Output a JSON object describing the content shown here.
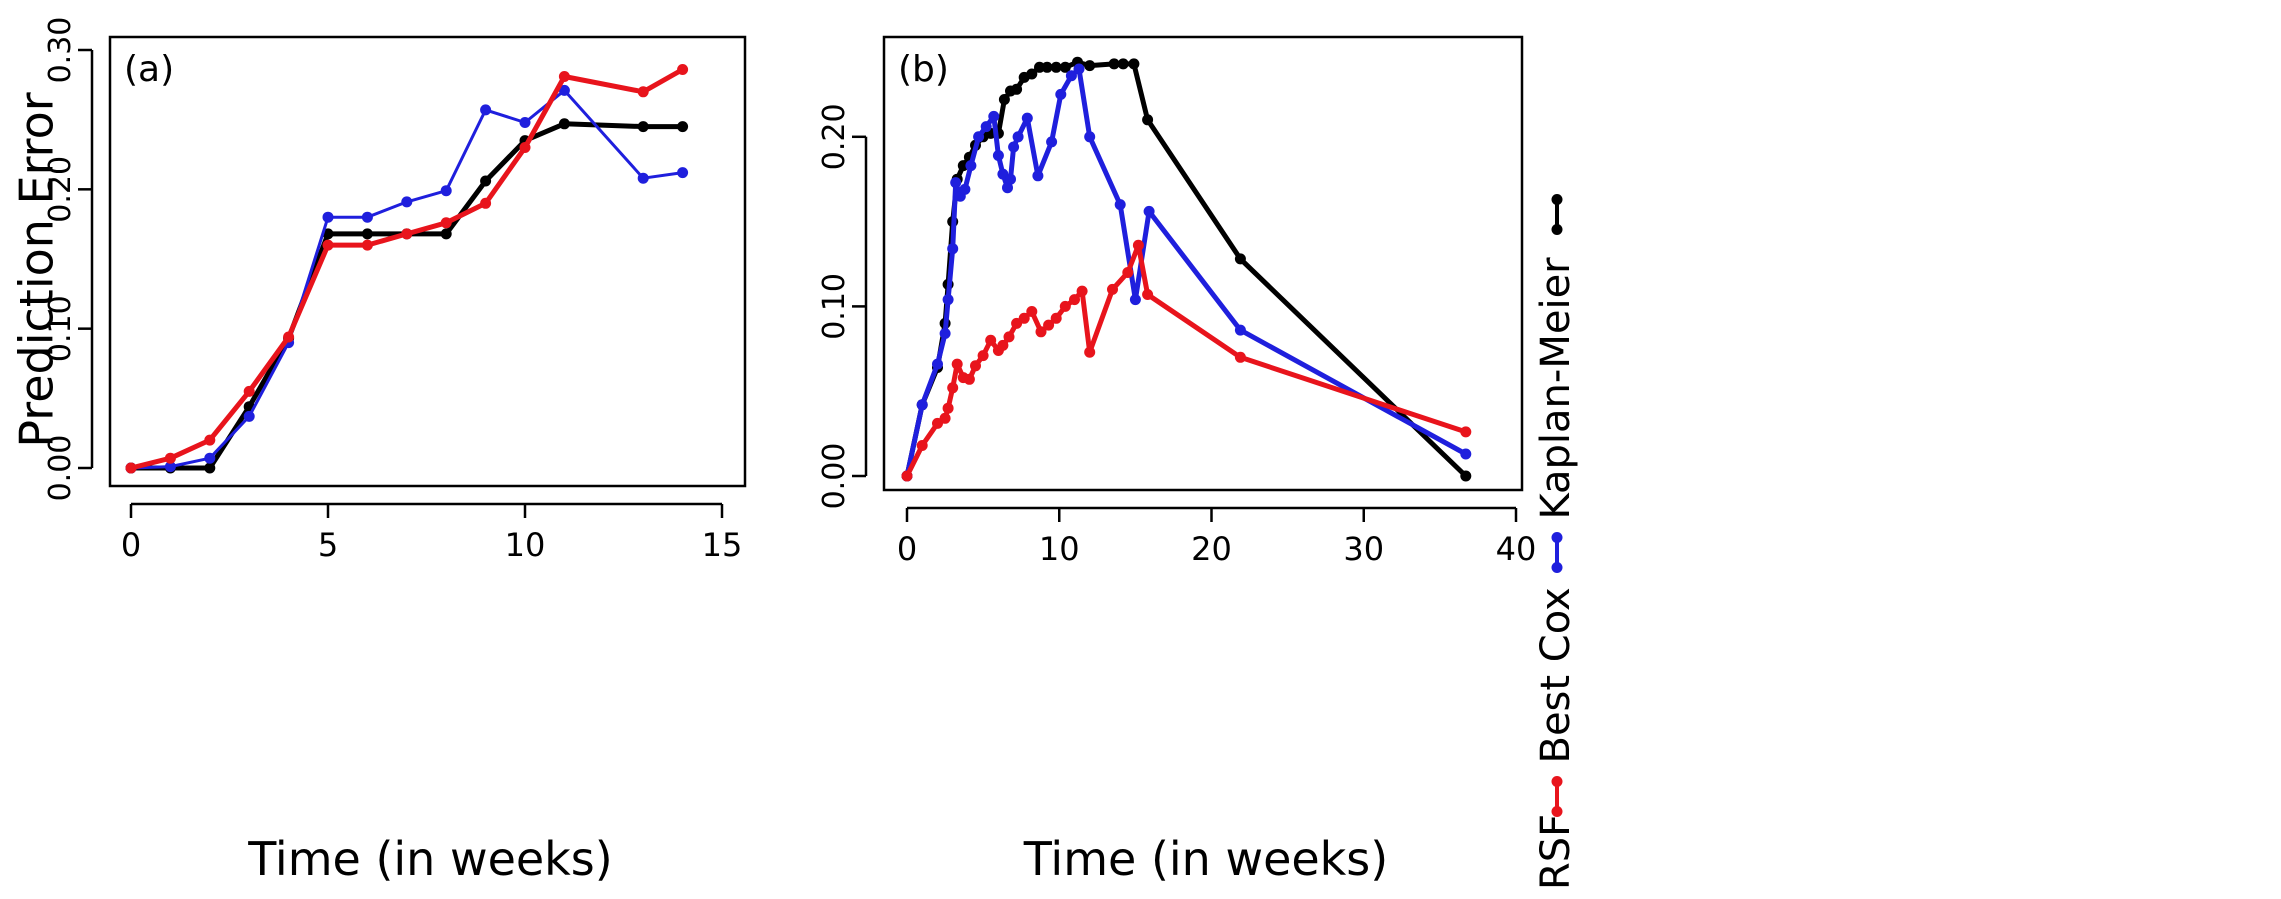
{
  "legend": {
    "items": [
      {
        "label": "RSF",
        "color": "#e8141c"
      },
      {
        "label": "Best Cox",
        "color": "#1f1fdd"
      },
      {
        "label": "Kaplan-Meier",
        "color": "#000000"
      }
    ],
    "placement": "right, vertical"
  },
  "chart_data": [
    {
      "type": "line",
      "title": "(a)",
      "xlabel": "Time (in weeks)",
      "ylabel": "Prediction Error",
      "xlim": [
        0,
        15
      ],
      "ylim": [
        0,
        0.3
      ],
      "xticks": [
        0,
        5,
        10,
        15
      ],
      "xtick_labels": [
        "0",
        "5",
        "10",
        "15"
      ],
      "yticks": [
        0,
        0.1,
        0.2,
        0.3
      ],
      "ytick_labels": [
        "0.00",
        "0.10",
        "0.20",
        "0.30"
      ],
      "grid": false,
      "series": [
        {
          "name": "Kaplan-Meier",
          "color": "#000000",
          "x": [
            0,
            1,
            2,
            3,
            4,
            5,
            6,
            7,
            8,
            9,
            10,
            11,
            13,
            14
          ],
          "y": [
            0.0,
            0.0,
            0.0,
            0.044,
            0.093,
            0.168,
            0.168,
            0.168,
            0.168,
            0.206,
            0.235,
            0.247,
            0.245,
            0.245
          ]
        },
        {
          "name": "Best Cox",
          "color": "#1f1fdd",
          "x": [
            0,
            1,
            2,
            3,
            4,
            5,
            6,
            7,
            8,
            9,
            10,
            11,
            13,
            14
          ],
          "y": [
            0.0,
            0.001,
            0.007,
            0.037,
            0.09,
            0.18,
            0.18,
            0.191,
            0.199,
            0.257,
            0.248,
            0.271,
            0.208,
            0.212
          ]
        },
        {
          "name": "RSF",
          "color": "#e8141c",
          "x": [
            0,
            1,
            2,
            3,
            4,
            5,
            6,
            7,
            8,
            9,
            10,
            11,
            13,
            14
          ],
          "y": [
            0.0,
            0.007,
            0.02,
            0.055,
            0.094,
            0.16,
            0.16,
            0.168,
            0.176,
            0.19,
            0.23,
            0.281,
            0.27,
            0.286
          ]
        }
      ]
    },
    {
      "type": "line",
      "title": "(b)",
      "xlabel": "Time (in weeks)",
      "ylabel": "",
      "xlim": [
        0,
        40
      ],
      "ylim": [
        0,
        0.25
      ],
      "xticks": [
        0,
        10,
        20,
        30,
        40
      ],
      "xtick_labels": [
        "0",
        "10",
        "20",
        "30",
        "40"
      ],
      "yticks": [
        0,
        0.1,
        0.2
      ],
      "ytick_labels": [
        "0.00",
        "0.10",
        "0.20"
      ],
      "grid": false,
      "series": [
        {
          "name": "Kaplan-Meier",
          "color": "#000000",
          "x": [
            0,
            1,
            2,
            2.5,
            2.7,
            3.0,
            3.3,
            3.7,
            4.1,
            4.5,
            5.0,
            5.5,
            6.0,
            6.4,
            6.8,
            7.2,
            7.7,
            8.2,
            8.7,
            9.2,
            9.8,
            10.4,
            11.2,
            12.0,
            13.6,
            14.2,
            14.9,
            15.8,
            21.9,
            36.7
          ],
          "y": [
            0.0,
            0.042,
            0.064,
            0.09,
            0.113,
            0.15,
            0.175,
            0.183,
            0.188,
            0.195,
            0.2,
            0.202,
            0.202,
            0.222,
            0.227,
            0.228,
            0.235,
            0.237,
            0.241,
            0.241,
            0.241,
            0.241,
            0.244,
            0.242,
            0.243,
            0.243,
            0.243,
            0.21,
            0.128,
            0.0
          ]
        },
        {
          "name": "Best Cox",
          "color": "#1f1fdd",
          "x": [
            0,
            1,
            2,
            2.5,
            2.7,
            3.0,
            3.2,
            3.5,
            3.8,
            4.2,
            4.7,
            5.2,
            5.7,
            6.0,
            6.3,
            6.6,
            6.8,
            7.0,
            7.3,
            7.9,
            8.6,
            9.5,
            10.1,
            10.8,
            11.3,
            12.0,
            14.0,
            15.0,
            15.9,
            21.9,
            36.7
          ],
          "y": [
            0.0,
            0.042,
            0.066,
            0.084,
            0.104,
            0.134,
            0.173,
            0.165,
            0.169,
            0.183,
            0.2,
            0.206,
            0.212,
            0.189,
            0.178,
            0.17,
            0.175,
            0.194,
            0.2,
            0.211,
            0.177,
            0.197,
            0.225,
            0.236,
            0.24,
            0.2,
            0.16,
            0.104,
            0.156,
            0.086,
            0.013
          ]
        },
        {
          "name": "RSF",
          "color": "#e8141c",
          "x": [
            0,
            1,
            2,
            2.5,
            2.7,
            3.0,
            3.3,
            3.7,
            4.1,
            4.5,
            5.0,
            5.5,
            6.0,
            6.3,
            6.7,
            7.2,
            7.7,
            8.2,
            8.8,
            9.3,
            9.8,
            10.4,
            11.0,
            11.5,
            12.0,
            13.5,
            14.5,
            15.2,
            15.8,
            21.9,
            36.7
          ],
          "y": [
            0.0,
            0.018,
            0.031,
            0.034,
            0.04,
            0.052,
            0.066,
            0.058,
            0.057,
            0.065,
            0.071,
            0.08,
            0.074,
            0.077,
            0.082,
            0.09,
            0.093,
            0.097,
            0.085,
            0.089,
            0.093,
            0.1,
            0.104,
            0.109,
            0.073,
            0.11,
            0.12,
            0.136,
            0.107,
            0.07,
            0.026
          ]
        }
      ]
    }
  ]
}
